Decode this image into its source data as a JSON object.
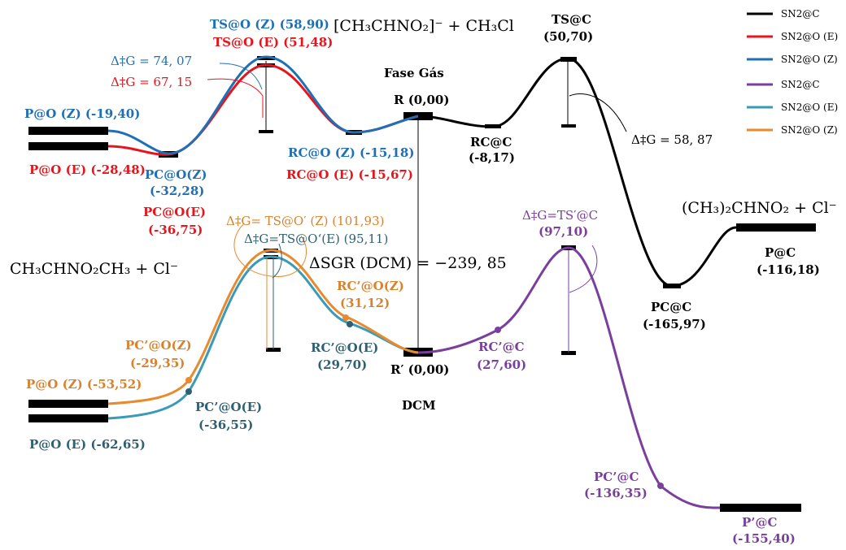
{
  "colors": {
    "black": "#000000",
    "red": "#e8141b",
    "blue": "#1f6fb5",
    "purple": "#7a3f9d",
    "teal": "#2e5f73",
    "orange": "#e88a2e",
    "orange_label": "#d9822b"
  },
  "headings": {
    "gas_reactants": "[CH₃CHNO₂]⁻ + CH₃Cl",
    "gas_phase": "Fase Gás",
    "gas_products_right": "(CH₃)₂CHNO₂ + Cl⁻",
    "o_products_left": "CH₃CHNO₂CH₃ + Cl⁻",
    "dcm": "DCM",
    "delta_s_g": "ΔSGR (DCM) = −239, 85"
  },
  "legend": [
    {
      "label": "SN2@C",
      "color": "#000000"
    },
    {
      "label": "SN2@O (E)",
      "color": "#e8141b"
    },
    {
      "label": "SN2@O (Z)",
      "color": "#1f6fb5"
    },
    {
      "label": "SN2@C",
      "color": "#7a3f9d"
    },
    {
      "label": "SN2@O (E)",
      "color": "#3a9ab7"
    },
    {
      "label": "SN2@O (Z)",
      "color": "#e88a2e"
    }
  ],
  "gas": {
    "r": {
      "name": "R",
      "value": "(0,00)"
    },
    "rc_c": {
      "name": "RC@C",
      "value": "(-8,17)"
    },
    "ts_c": {
      "name": "TS@C",
      "value": "(50,70)"
    },
    "dg_c": "Δ‡G = 58, 87",
    "pc_c": {
      "name": "PC@C",
      "value": "(-165,97)"
    },
    "p_c": {
      "name": "P@C",
      "value": "(-116,18)"
    },
    "rc_o_z": "RC@O (Z) (-15,18)",
    "rc_o_e": "RC@O  (E) (-15,67)",
    "ts_o_z": "TS@O (Z) (58,90)",
    "ts_o_e": "TS@O (E) (51,48)",
    "dg_o_z": "Δ‡G = 74, 07",
    "dg_o_e": "Δ‡G = 67, 15",
    "pc_o_z": {
      "name": "PC@O(Z)",
      "value": "(-32,28)"
    },
    "pc_o_e": {
      "name": "PC@O(E)",
      "value": "(-36,75)"
    },
    "p_o_z": "P@O (Z) (-19,40)",
    "p_o_e": "P@O (E) (-28,48)"
  },
  "dcm": {
    "r": "R′ (0,00)",
    "rc_c": {
      "name": "RC’@C",
      "value": "(27,60)"
    },
    "ts_c": {
      "name": "Δ‡G=TS′@C",
      "value": "(97,10)"
    },
    "pc_c": {
      "name": "PC’@C",
      "value": "(-136,35)"
    },
    "p_c": {
      "name": "P’@C",
      "value": "(-155,40)"
    },
    "ts_o_z": "Δ‡G= TS@O′ (Z) (101,93)",
    "ts_o_e": "Δ‡G=TS@O‘(E) (95,11)",
    "rc_o_z": {
      "name": "RC’@O(Z)",
      "value": "(31,12)"
    },
    "rc_o_e": {
      "name": "RC’@O(E)",
      "value": "(29,70)"
    },
    "pc_o_z": {
      "name": "PC’@O(Z)",
      "value": "(-29,35)"
    },
    "pc_o_e": {
      "name": "PC’@O(E)",
      "value": "(-36,55)"
    },
    "p_o_z": "P@O (Z) (-53,52)",
    "p_o_e": "P@O (E) (-62,65)"
  }
}
